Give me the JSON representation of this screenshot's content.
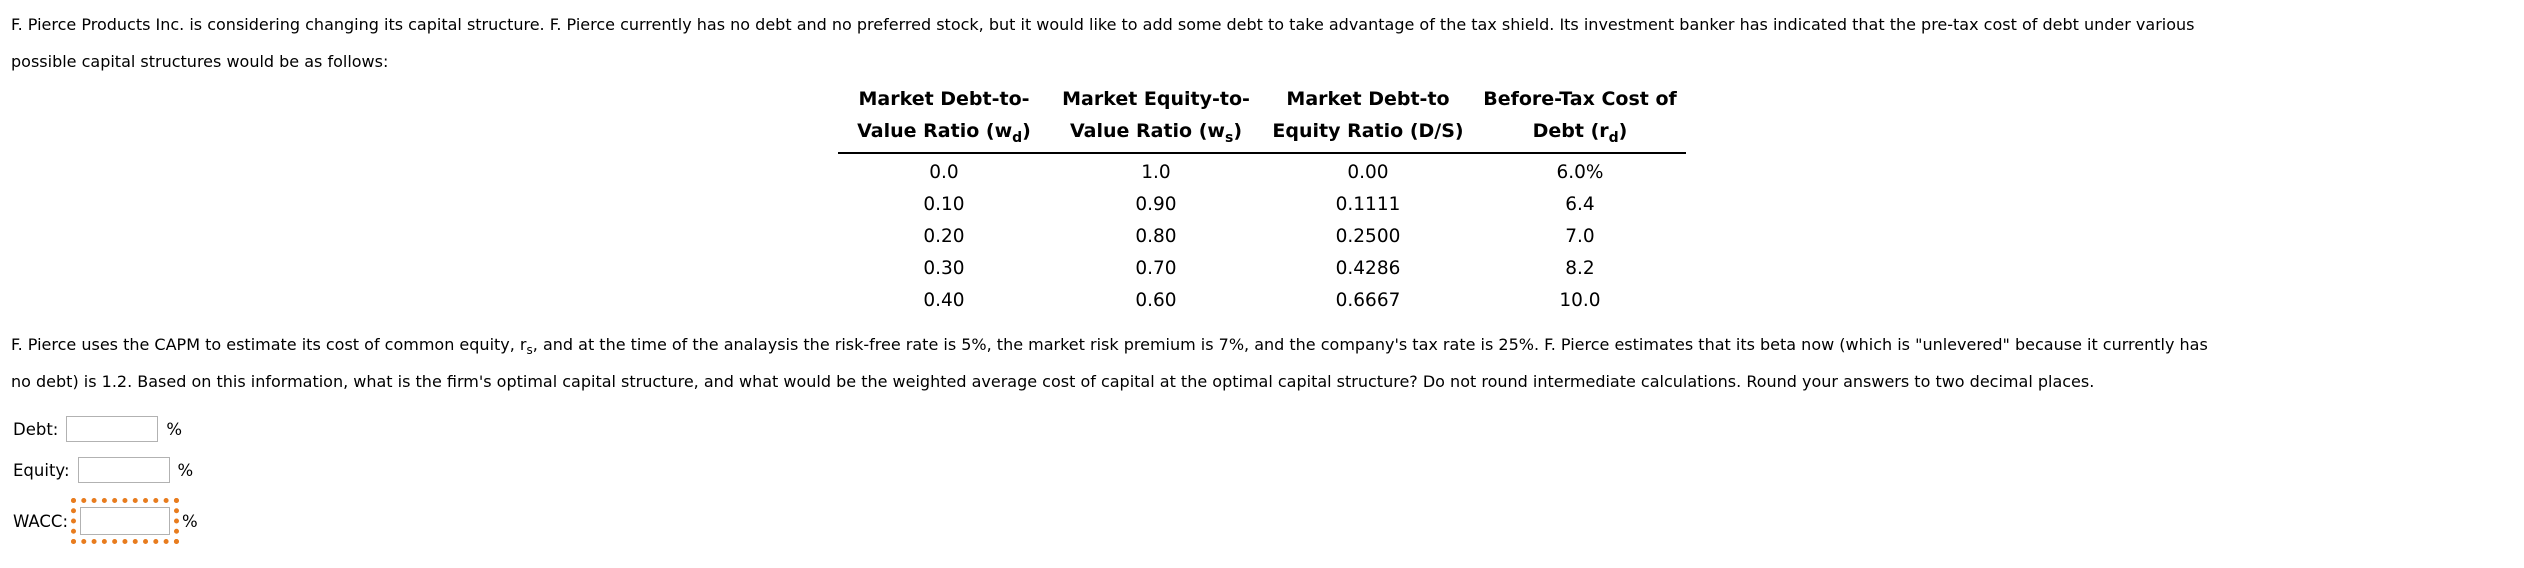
{
  "intro": {
    "line1": "F. Pierce Products Inc. is considering changing its capital structure. F. Pierce currently has no debt and no preferred stock, but it would like to add some debt to take advantage of the tax shield. Its investment banker has indicated that the pre-tax cost of debt under various",
    "line2": "possible capital structures would be as follows:"
  },
  "table": {
    "headers": [
      {
        "line1": "Market Debt-to-",
        "line2_pre": "Value Ratio (w",
        "sub": "d",
        "line2_post": ")"
      },
      {
        "line1": "Market Equity-to-",
        "line2_pre": "Value Ratio (w",
        "sub": "s",
        "line2_post": ")"
      },
      {
        "line1": "Market Debt-to",
        "line2_pre": "Equity Ratio (D/S)",
        "sub": "",
        "line2_post": ""
      },
      {
        "line1": "Before-Tax Cost of",
        "line2_pre": "Debt (r",
        "sub": "d",
        "line2_post": ")"
      }
    ],
    "rows": [
      [
        "0.0",
        "1.0",
        "0.00",
        "6.0%"
      ],
      [
        "0.10",
        "0.90",
        "0.1111",
        "6.4"
      ],
      [
        "0.20",
        "0.80",
        "0.2500",
        "7.0"
      ],
      [
        "0.30",
        "0.70",
        "0.4286",
        "8.2"
      ],
      [
        "0.40",
        "0.60",
        "0.6667",
        "10.0"
      ]
    ]
  },
  "question": {
    "line1_pre": "F. Pierce uses the CAPM to estimate its cost of common equity, r",
    "line1_sub": "s",
    "line1_post": ", and at the time of the analaysis the risk-free rate is 5%, the market risk premium is 7%, and the company's tax rate is 25%. F. Pierce estimates that its beta now (which is \"unlevered\" because it currently has",
    "line2": "no debt) is 1.2. Based on this information, what is the firm's optimal capital structure, and what would be the weighted average cost of capital at the optimal capital structure? Do not round intermediate calculations. Round your answers to two decimal places."
  },
  "answers": {
    "debt_label": "Debt:",
    "debt_value": "",
    "equity_label": "Equity:",
    "equity_value": "",
    "wacc_label": "WACC:",
    "wacc_value": "",
    "percent": "%"
  },
  "colors": {
    "focus_ring_orange": "#e87c1e",
    "input_border_gray": "#b2b2b2",
    "text": "#000000",
    "background": "#ffffff"
  }
}
